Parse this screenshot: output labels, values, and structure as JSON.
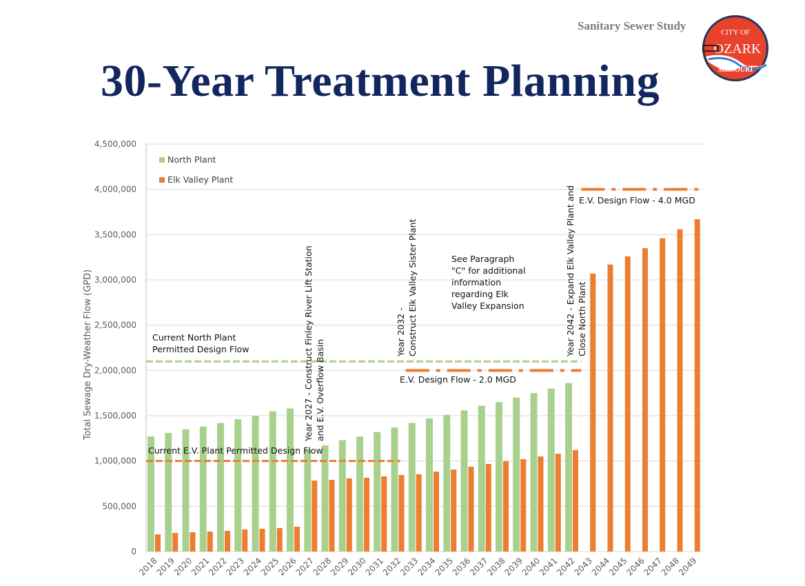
{
  "header": {
    "subtitle": "Sanitary Sewer Study",
    "title": "30-Year Treatment Planning"
  },
  "logo": {
    "text_top": "CITY OF",
    "text_mid": "OZARK",
    "text_bottom": "MISSOURI"
  },
  "colors": {
    "north": "#a9d18e",
    "elk": "#ed7d31",
    "title": "#13275f"
  },
  "chart_data": {
    "type": "bar",
    "title": "",
    "xlabel": "",
    "ylabel": "Total Sewage Dry-Weather Flow (GPD)",
    "ylim": [
      0,
      4500000
    ],
    "yticks": [
      "0",
      "500,000",
      "1,000,000",
      "1,500,000",
      "2,000,000",
      "2,500,000",
      "3,000,000",
      "3,500,000",
      "4,000,000",
      "4,500,000"
    ],
    "grid": true,
    "legend_position": "top-left",
    "categories": [
      "2018",
      "2019",
      "2020",
      "2021",
      "2022",
      "2023",
      "2024",
      "2025",
      "2026",
      "2027",
      "2028",
      "2029",
      "2030",
      "2031",
      "2032",
      "2033",
      "2034",
      "2035",
      "2036",
      "2037",
      "2038",
      "2039",
      "2040",
      "2041",
      "2042",
      "2043",
      "2044",
      "2045",
      "2046",
      "2047",
      "2048",
      "2049"
    ],
    "series": [
      {
        "name": "North Plant",
        "values": [
          1270000,
          1310000,
          1350000,
          1380000,
          1420000,
          1460000,
          1500000,
          1550000,
          1580000,
          1130000,
          1170000,
          1230000,
          1270000,
          1320000,
          1370000,
          1420000,
          1470000,
          1510000,
          1560000,
          1610000,
          1650000,
          1700000,
          1750000,
          1800000,
          1860000,
          0,
          0,
          0,
          0,
          0,
          0,
          0
        ]
      },
      {
        "name": "Elk Valley Plant",
        "values": [
          190000,
          205000,
          213000,
          221000,
          228000,
          244000,
          251000,
          259000,
          274000,
          784000,
          792000,
          807000,
          815000,
          830000,
          845000,
          853000,
          883000,
          906000,
          936000,
          967000,
          997000,
          1020000,
          1050000,
          1080000,
          1120000,
          3070000,
          3170000,
          3260000,
          3350000,
          3460000,
          3560000,
          3670000
        ]
      }
    ],
    "reference_lines": [
      {
        "label": "Current North Plant Permitted Design Flow",
        "value": 2100000,
        "from": "2018",
        "to": "2042",
        "style": "dashed",
        "color": "#a9d18e"
      },
      {
        "label": "Current E.V. Plant Permitted Design Flow",
        "value": 1000000,
        "from": "2018",
        "to": "2032",
        "style": "dashed",
        "color": "#ed7d31"
      },
      {
        "label": "E.V. Design Flow - 2.0 MGD",
        "value": 2000000,
        "from": "2033",
        "to": "2042",
        "style": "dash-dot",
        "color": "#ed7d31"
      },
      {
        "label": "E.V. Design Flow - 4.0 MGD",
        "value": 4000000,
        "from": "2043",
        "to": "2049",
        "style": "dash-dot",
        "color": "#ed7d31"
      }
    ],
    "annotations": [
      {
        "lines": [
          "Year 2027 - Construct Finley River Lift Station",
          "and E.V. Overflow Basin"
        ]
      },
      {
        "lines": [
          "Year 2032  -",
          "Construct Elk Valley Sister Plant"
        ]
      },
      {
        "lines": [
          "Year 2042 - Expand Elk Valley Plant and",
          "Close North Plant"
        ]
      },
      {
        "lines": [
          "See Paragraph",
          "\"C\" for additional",
          "information",
          "regarding Elk",
          "Valley Expansion"
        ]
      }
    ]
  }
}
